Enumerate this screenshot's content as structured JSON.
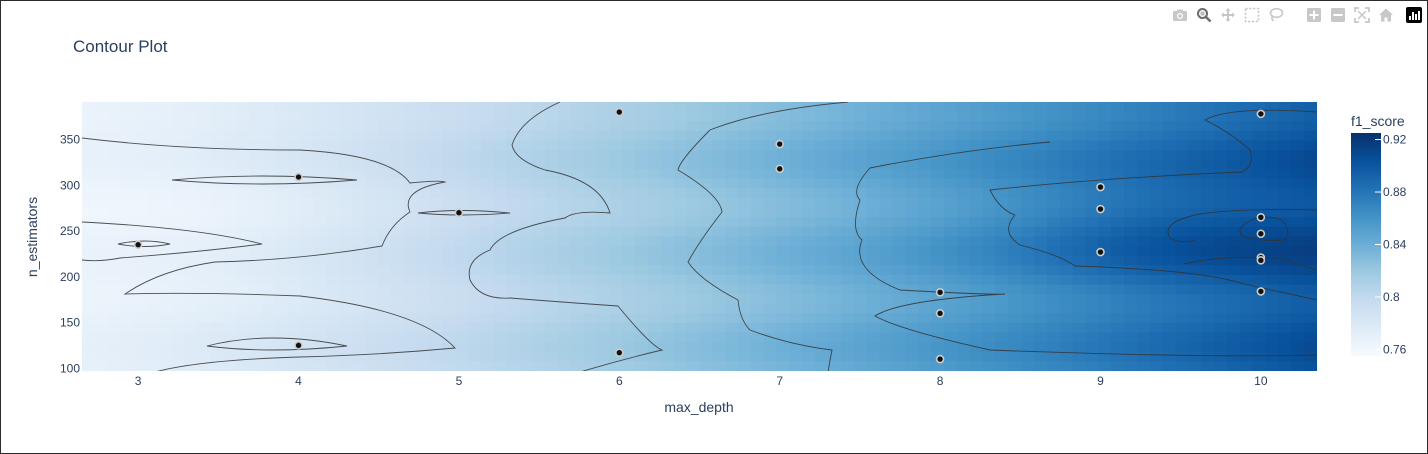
{
  "modebar": {
    "buttons": [
      {
        "icon": "camera-icon",
        "label": "Download plot as a png"
      },
      {
        "icon": "zoom-icon",
        "label": "Zoom"
      },
      {
        "icon": "pan-icon",
        "label": "Pan"
      },
      {
        "icon": "box-select-icon",
        "label": "Box Select"
      },
      {
        "icon": "lasso-select-icon",
        "label": "Lasso Select"
      },
      {
        "icon": "zoom-in-icon",
        "label": "Zoom in"
      },
      {
        "icon": "zoom-out-icon",
        "label": "Zoom out"
      },
      {
        "icon": "autoscale-icon",
        "label": "Autoscale"
      },
      {
        "icon": "reset-axes-icon",
        "label": "Reset axes"
      }
    ],
    "logo": "plotly-logo-icon"
  },
  "colors": {
    "scale_low": "#f7fbff",
    "scale_high": "#08306b",
    "contour_line": "#333333",
    "point_fill": "#111111",
    "point_ring": "#cccccc"
  },
  "chart_data": {
    "type": "contour",
    "title": "Contour Plot",
    "xlabel": "max_depth",
    "ylabel": "n_estimators",
    "xlim": [
      2.65,
      10.35
    ],
    "ylim": [
      97,
      391
    ],
    "xticks": [
      3,
      4,
      5,
      6,
      7,
      8,
      9,
      10
    ],
    "yticks": [
      100,
      150,
      200,
      250,
      300,
      350
    ],
    "colorbar": {
      "title": "f1_score",
      "range": [
        0.755,
        0.925
      ],
      "ticks": [
        0.76,
        0.8,
        0.84,
        0.88,
        0.92
      ]
    },
    "trials": [
      {
        "x": 3,
        "y": 235
      },
      {
        "x": 4,
        "y": 309
      },
      {
        "x": 4,
        "y": 125
      },
      {
        "x": 5,
        "y": 270
      },
      {
        "x": 6,
        "y": 380
      },
      {
        "x": 6,
        "y": 117
      },
      {
        "x": 7,
        "y": 345
      },
      {
        "x": 7,
        "y": 318
      },
      {
        "x": 8,
        "y": 183
      },
      {
        "x": 8,
        "y": 160
      },
      {
        "x": 8,
        "y": 110
      },
      {
        "x": 9,
        "y": 298
      },
      {
        "x": 9,
        "y": 274
      },
      {
        "x": 9,
        "y": 227
      },
      {
        "x": 10,
        "y": 378
      },
      {
        "x": 10,
        "y": 265
      },
      {
        "x": 10,
        "y": 247
      },
      {
        "x": 10,
        "y": 221
      },
      {
        "x": 10,
        "y": 218
      },
      {
        "x": 10,
        "y": 184
      }
    ]
  }
}
